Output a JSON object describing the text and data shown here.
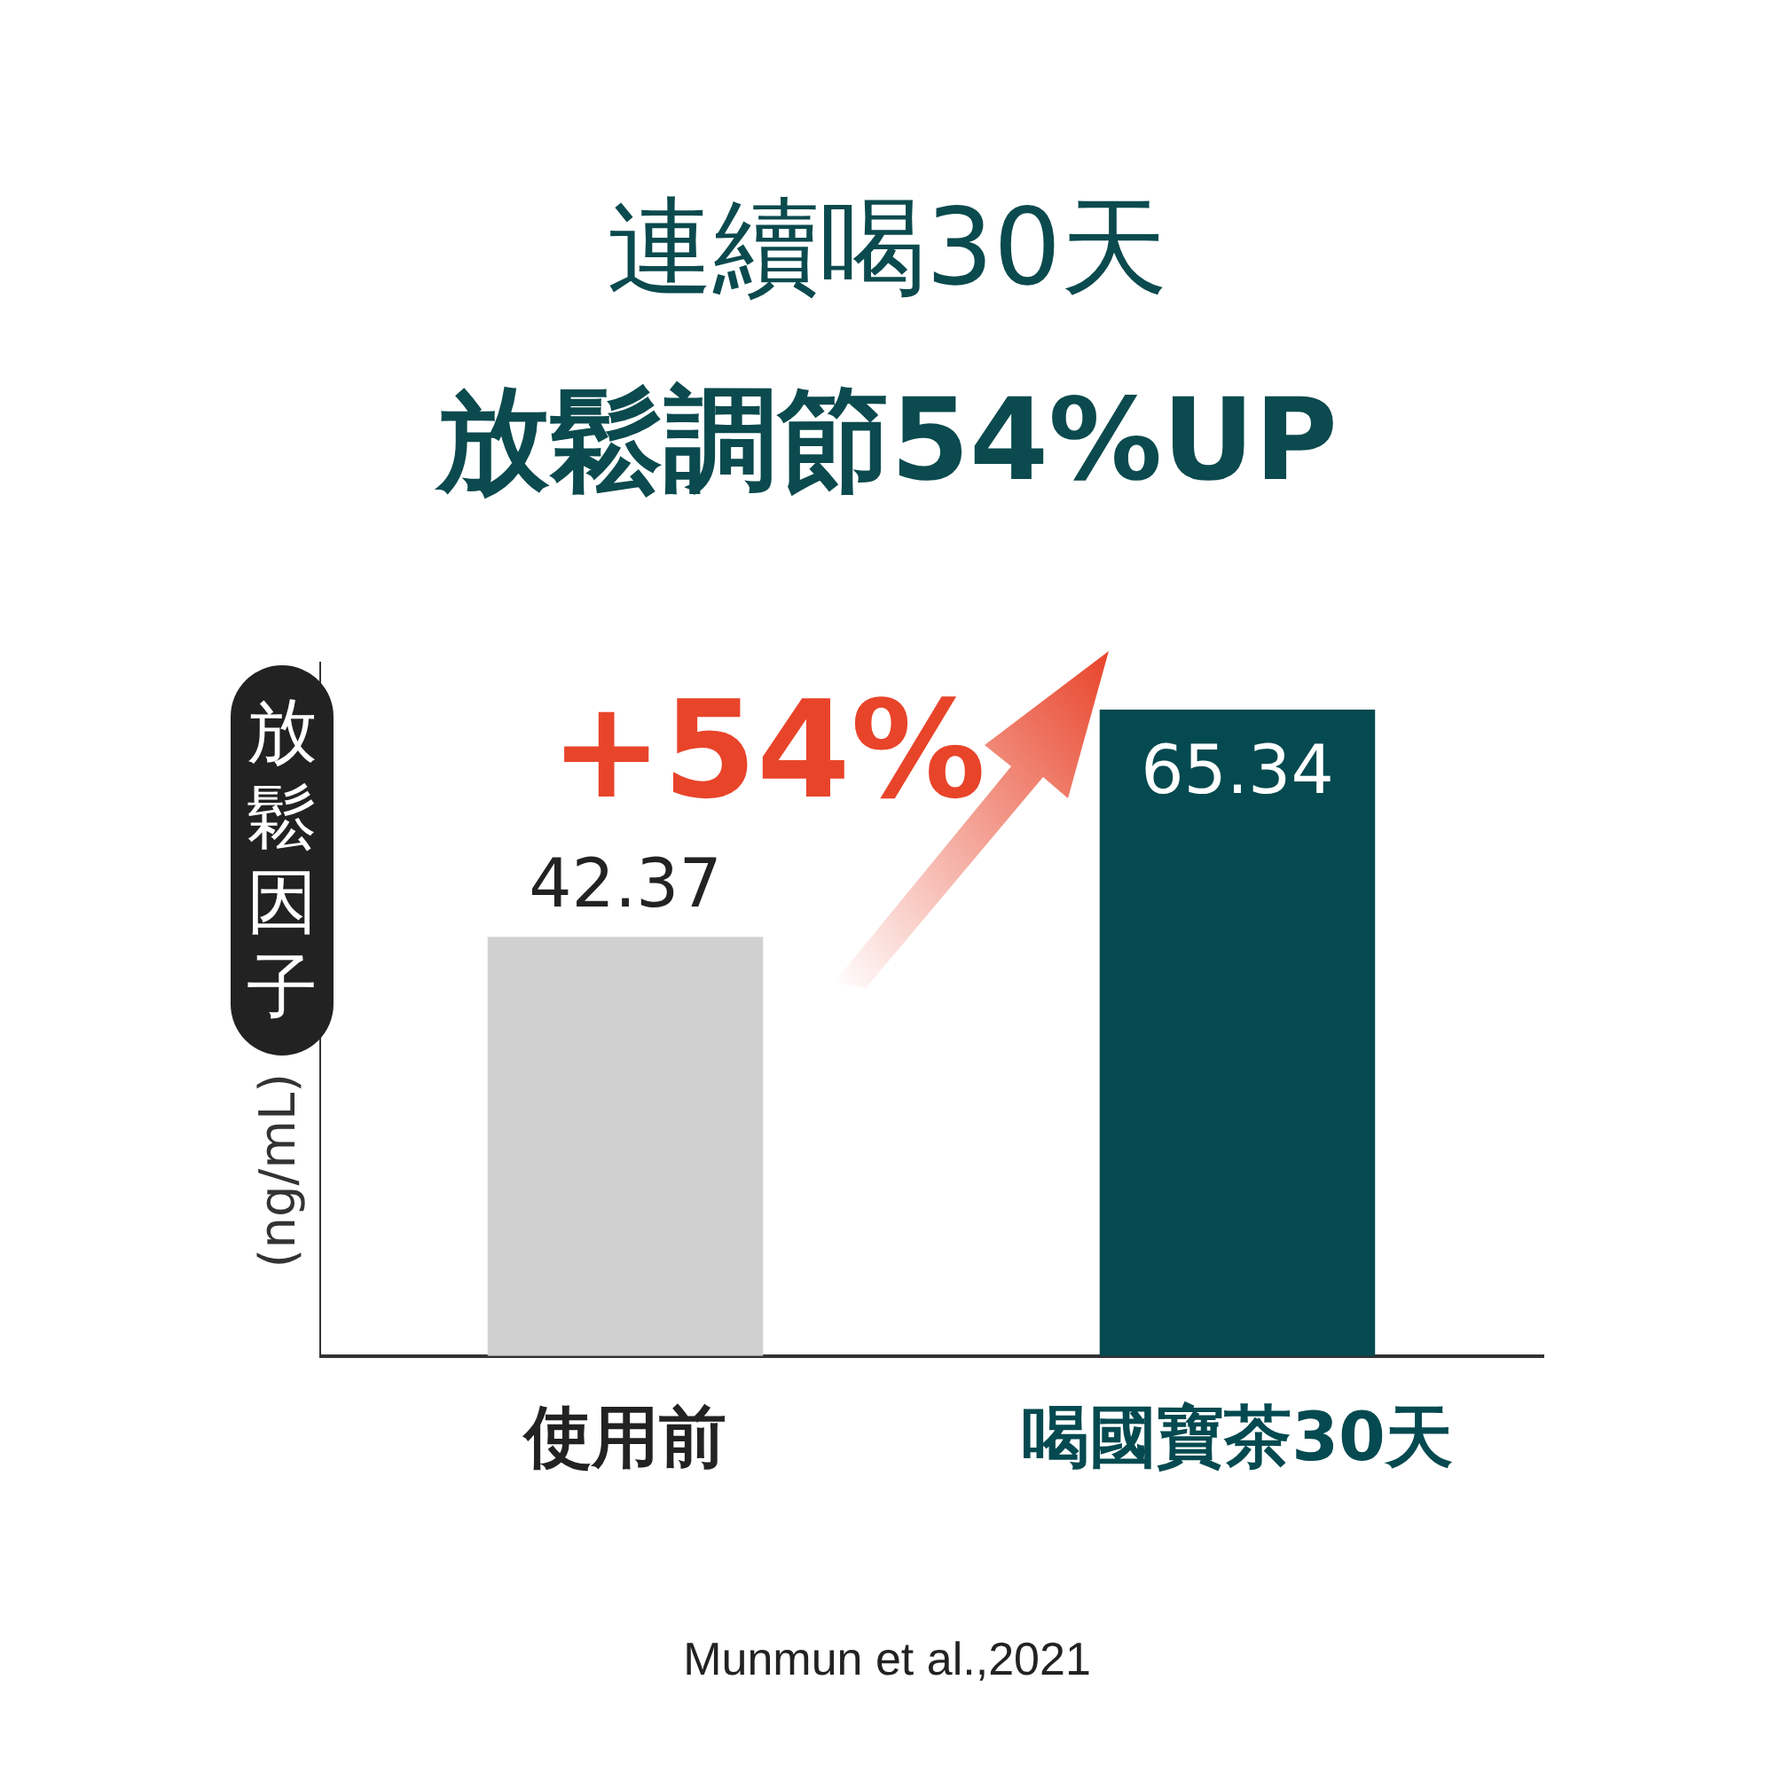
{
  "chart_data": {
    "type": "bar",
    "title": "連續喝30天",
    "subtitle": "放鬆調節54%UP",
    "ylabel": "放鬆因子(ng/mL)",
    "categories": [
      "使用前",
      "喝國寶茶30天"
    ],
    "values": [
      42.37,
      65.34
    ],
    "colors": [
      "#d0d0d0",
      "#044a50"
    ],
    "data_labels": true,
    "annotations": [
      "+54%",
      "Munmun et al.,2021"
    ]
  }
}
